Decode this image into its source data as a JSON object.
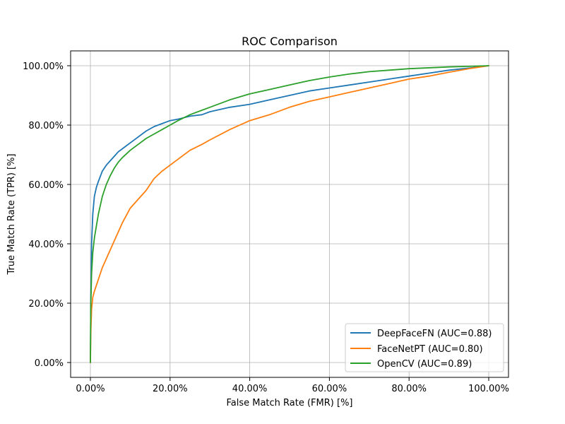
{
  "chart_data": {
    "type": "line",
    "title": "ROC Comparison",
    "xlabel": "False Match Rate (FMR) [%]",
    "ylabel": "True Match Rate (TPR) [%]",
    "xlim": [
      0,
      1
    ],
    "ylim": [
      0,
      1
    ],
    "x_ticks": [
      0,
      0.2,
      0.4,
      0.6,
      0.8,
      1.0
    ],
    "y_ticks": [
      0,
      0.2,
      0.4,
      0.6,
      0.8,
      1.0
    ],
    "x_tick_labels": [
      "0.00%",
      "20.00%",
      "40.00%",
      "60.00%",
      "80.00%",
      "100.00%"
    ],
    "y_tick_labels": [
      "0.00%",
      "20.00%",
      "40.00%",
      "60.00%",
      "80.00%",
      "100.00%"
    ],
    "grid": true,
    "legend_position": "lower-right",
    "series": [
      {
        "name": "DeepFaceFN (AUC=0.88)",
        "color": "#1f77b4",
        "x": [
          0,
          0.001,
          0.003,
          0.006,
          0.01,
          0.015,
          0.02,
          0.03,
          0.04,
          0.05,
          0.06,
          0.07,
          0.08,
          0.09,
          0.1,
          0.12,
          0.14,
          0.16,
          0.18,
          0.2,
          0.22,
          0.25,
          0.28,
          0.3,
          0.35,
          0.4,
          0.45,
          0.5,
          0.55,
          0.6,
          0.65,
          0.7,
          0.75,
          0.8,
          0.85,
          0.9,
          0.95,
          1.0
        ],
        "y": [
          0,
          0.2,
          0.4,
          0.5,
          0.56,
          0.59,
          0.61,
          0.645,
          0.665,
          0.68,
          0.695,
          0.71,
          0.72,
          0.73,
          0.74,
          0.76,
          0.78,
          0.795,
          0.805,
          0.815,
          0.82,
          0.83,
          0.835,
          0.845,
          0.86,
          0.87,
          0.885,
          0.9,
          0.915,
          0.925,
          0.935,
          0.945,
          0.955,
          0.965,
          0.975,
          0.985,
          0.992,
          1.0
        ]
      },
      {
        "name": "FaceNetPT (AUC=0.80)",
        "color": "#ff7f0e",
        "x": [
          0,
          0.001,
          0.003,
          0.006,
          0.01,
          0.015,
          0.02,
          0.03,
          0.04,
          0.05,
          0.06,
          0.07,
          0.08,
          0.1,
          0.12,
          0.14,
          0.16,
          0.18,
          0.2,
          0.22,
          0.25,
          0.28,
          0.3,
          0.35,
          0.4,
          0.45,
          0.5,
          0.55,
          0.6,
          0.65,
          0.7,
          0.75,
          0.8,
          0.85,
          0.9,
          0.95,
          1.0
        ],
        "y": [
          0,
          0.1,
          0.18,
          0.22,
          0.24,
          0.26,
          0.28,
          0.32,
          0.35,
          0.38,
          0.41,
          0.44,
          0.47,
          0.52,
          0.55,
          0.58,
          0.62,
          0.645,
          0.665,
          0.685,
          0.715,
          0.735,
          0.75,
          0.785,
          0.815,
          0.835,
          0.86,
          0.88,
          0.895,
          0.91,
          0.925,
          0.94,
          0.955,
          0.965,
          0.978,
          0.99,
          1.0
        ]
      },
      {
        "name": "OpenCV (AUC=0.89)",
        "color": "#2ca02c",
        "x": [
          0,
          0.001,
          0.003,
          0.006,
          0.01,
          0.015,
          0.02,
          0.03,
          0.04,
          0.05,
          0.06,
          0.07,
          0.08,
          0.1,
          0.12,
          0.14,
          0.16,
          0.18,
          0.2,
          0.22,
          0.25,
          0.28,
          0.3,
          0.35,
          0.4,
          0.45,
          0.5,
          0.55,
          0.6,
          0.65,
          0.7,
          0.75,
          0.8,
          0.85,
          0.9,
          0.95,
          1.0
        ],
        "y": [
          0,
          0.2,
          0.3,
          0.37,
          0.42,
          0.46,
          0.5,
          0.56,
          0.6,
          0.63,
          0.655,
          0.675,
          0.69,
          0.715,
          0.735,
          0.755,
          0.77,
          0.785,
          0.8,
          0.815,
          0.835,
          0.85,
          0.86,
          0.885,
          0.905,
          0.92,
          0.935,
          0.95,
          0.962,
          0.972,
          0.98,
          0.985,
          0.99,
          0.993,
          0.996,
          0.998,
          1.0
        ]
      }
    ]
  }
}
